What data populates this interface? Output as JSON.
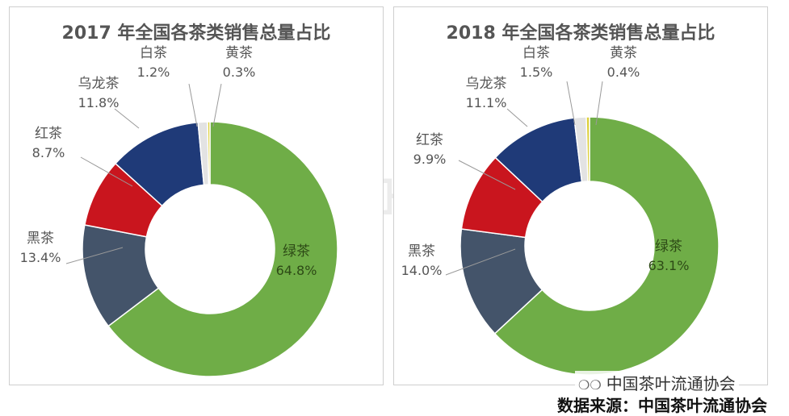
{
  "chart_data": [
    {
      "type": "pie",
      "title": "2017 年全国各茶类销售总量占比",
      "categories": [
        "绿茶",
        "黑茶",
        "红茶",
        "乌龙茶",
        "白茶",
        "黄茶"
      ],
      "values": [
        64.8,
        13.4,
        8.7,
        11.8,
        1.2,
        0.3
      ],
      "labels": [
        "64.8%",
        "13.4%",
        "8.7%",
        "11.8%",
        "1.2%",
        "0.3%"
      ],
      "colors": [
        "#6fad47",
        "#44546a",
        "#c9151e",
        "#1f3a78",
        "#e3e3e3",
        "#dccf3a"
      ]
    },
    {
      "type": "pie",
      "title": "2018 年全国各茶类销售总量占比",
      "categories": [
        "绿茶",
        "黑茶",
        "红茶",
        "乌龙茶",
        "白茶",
        "黄茶"
      ],
      "values": [
        63.1,
        14.0,
        9.9,
        11.1,
        1.5,
        0.4
      ],
      "labels": [
        "63.1%",
        "14.0%",
        "9.9%",
        "11.1%",
        "1.5%",
        "0.4%"
      ],
      "colors": [
        "#6fad47",
        "#44546a",
        "#c9151e",
        "#1f3a78",
        "#e3e3e3",
        "#dccf3a"
      ]
    }
  ],
  "watermark": "中国茶叶流通协会",
  "footer": {
    "handle": "中国茶叶流通协会",
    "handle_icon": "wechat-icon",
    "source": "数据来源：中国茶叶流通协会"
  }
}
